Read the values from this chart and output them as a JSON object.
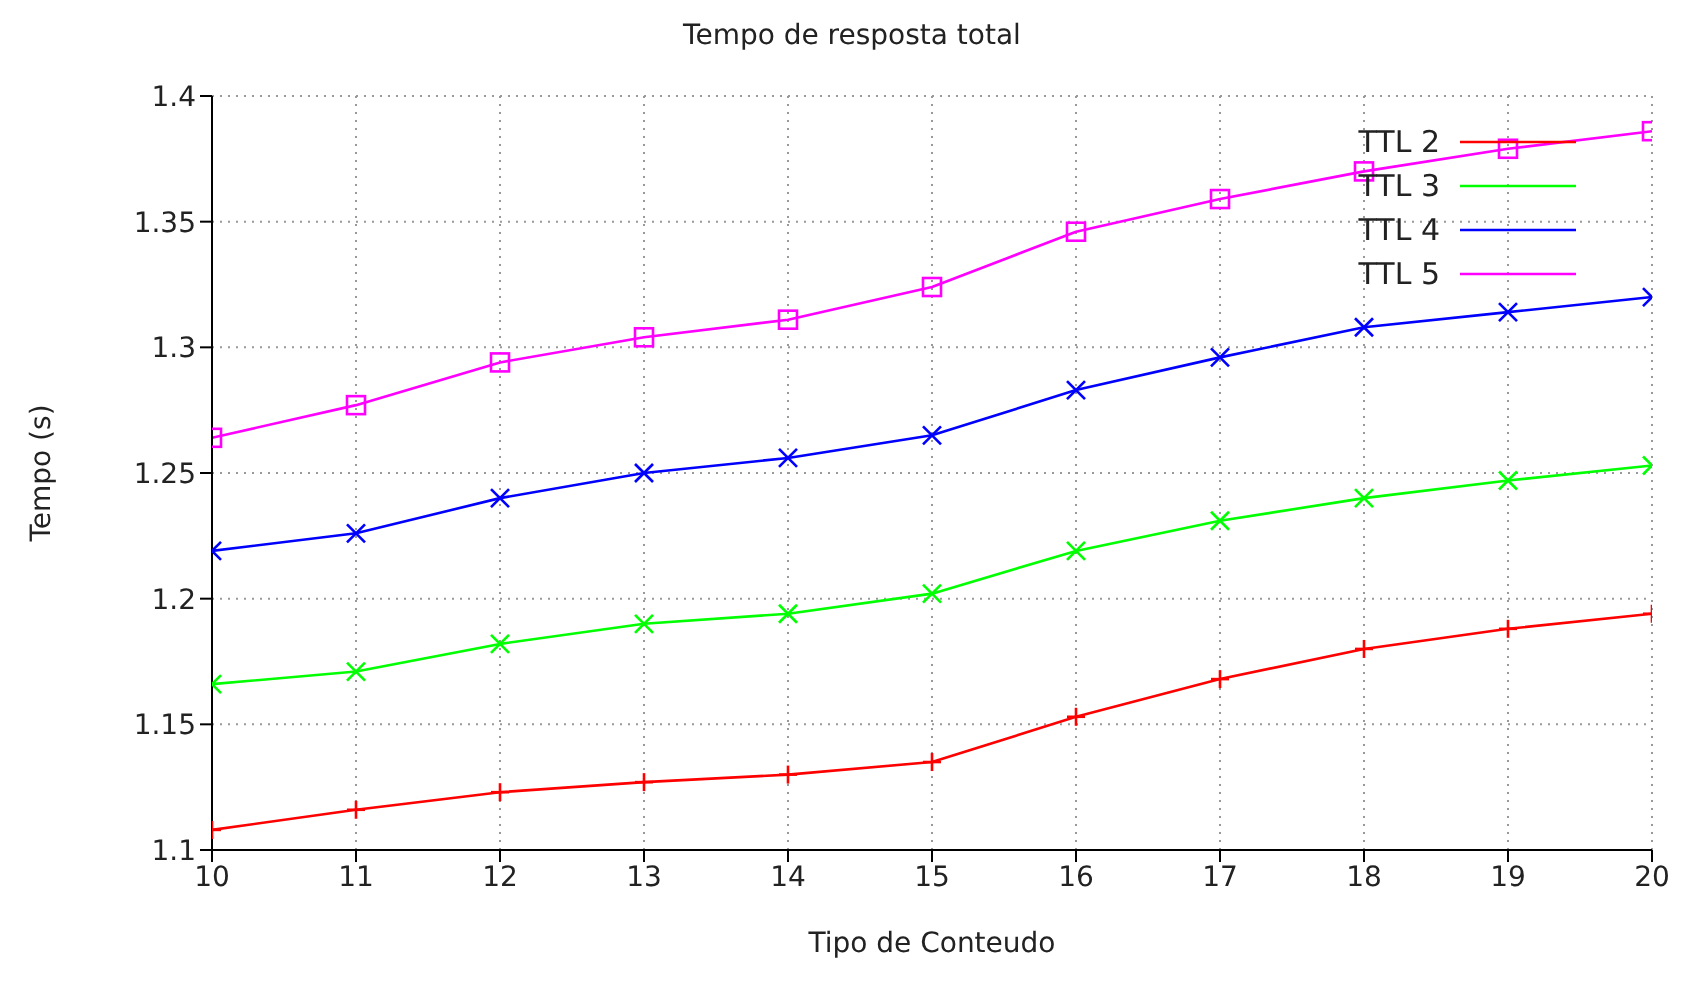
{
  "chart_data": {
    "type": "line",
    "title": "Tempo de resposta total",
    "xlabel": "Tipo de Conteudo",
    "ylabel": "Tempo (s)",
    "x": [
      10,
      11,
      12,
      13,
      14,
      15,
      16,
      17,
      18,
      19,
      20
    ],
    "xlim": [
      10,
      20
    ],
    "xticks": [
      10,
      11,
      12,
      13,
      14,
      15,
      16,
      17,
      18,
      19,
      20
    ],
    "ylim": [
      1.1,
      1.4
    ],
    "yticks": [
      1.1,
      1.15,
      1.2,
      1.25,
      1.3,
      1.35,
      1.4
    ],
    "grid": true,
    "legend": "top right",
    "series": [
      {
        "name": "TTL 2",
        "color": "#ff0000",
        "marker": "plus",
        "values": [
          1.108,
          1.116,
          1.123,
          1.127,
          1.13,
          1.135,
          1.153,
          1.168,
          1.18,
          1.188,
          1.194
        ]
      },
      {
        "name": "TTL 3",
        "color": "#00ff00",
        "marker": "cross",
        "values": [
          1.166,
          1.171,
          1.182,
          1.19,
          1.194,
          1.202,
          1.219,
          1.231,
          1.24,
          1.247,
          1.253
        ]
      },
      {
        "name": "TTL 4",
        "color": "#0000ff",
        "marker": "cross",
        "values": [
          1.219,
          1.226,
          1.24,
          1.25,
          1.256,
          1.265,
          1.283,
          1.296,
          1.308,
          1.314,
          1.32
        ]
      },
      {
        "name": "TTL 5",
        "color": "#ff00ff",
        "marker": "square",
        "values": [
          1.264,
          1.277,
          1.294,
          1.304,
          1.311,
          1.324,
          1.346,
          1.359,
          1.37,
          1.379,
          1.386
        ]
      }
    ]
  }
}
